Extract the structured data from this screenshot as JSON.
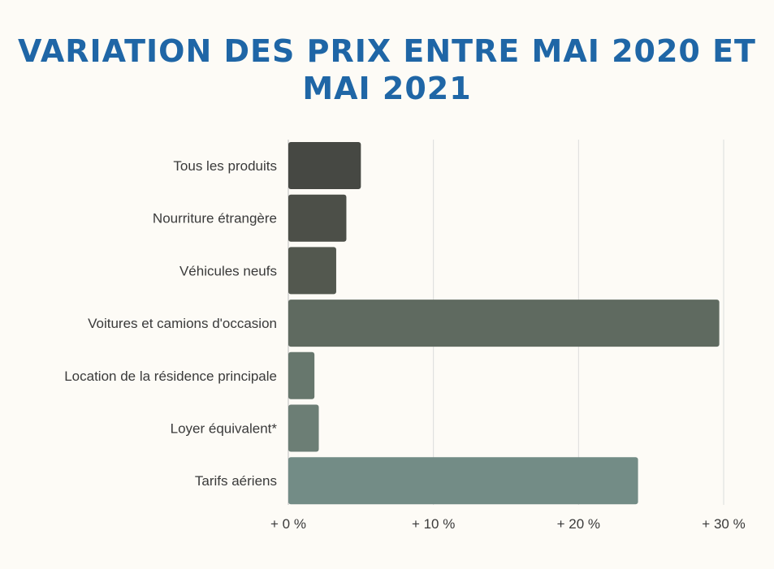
{
  "chart_data": {
    "type": "bar",
    "orientation": "horizontal",
    "title": "Variation des prix entre mai 2020 et mai 2021",
    "categories": [
      "Tous les produits",
      "Nourriture étrangère",
      "Véhicules neufs",
      "Voitures et camions d'occasion",
      "Location de la résidence principale",
      "Loyer équivalent*",
      "Tarifs aériens"
    ],
    "values": [
      5.0,
      4.0,
      3.3,
      29.7,
      1.8,
      2.1,
      24.1
    ],
    "colors": [
      "#464843",
      "#4c4f48",
      "#53584f",
      "#5f6a60",
      "#67776d",
      "#6c7e75",
      "#738c86"
    ],
    "xlim": [
      0,
      30
    ],
    "xticks": [
      0,
      10,
      20,
      30
    ],
    "xtick_labels": [
      "+ 0 %",
      "+ 10 %",
      "+ 20 %",
      "+ 30 %"
    ],
    "grid": true,
    "xlabel": "",
    "ylabel": ""
  }
}
